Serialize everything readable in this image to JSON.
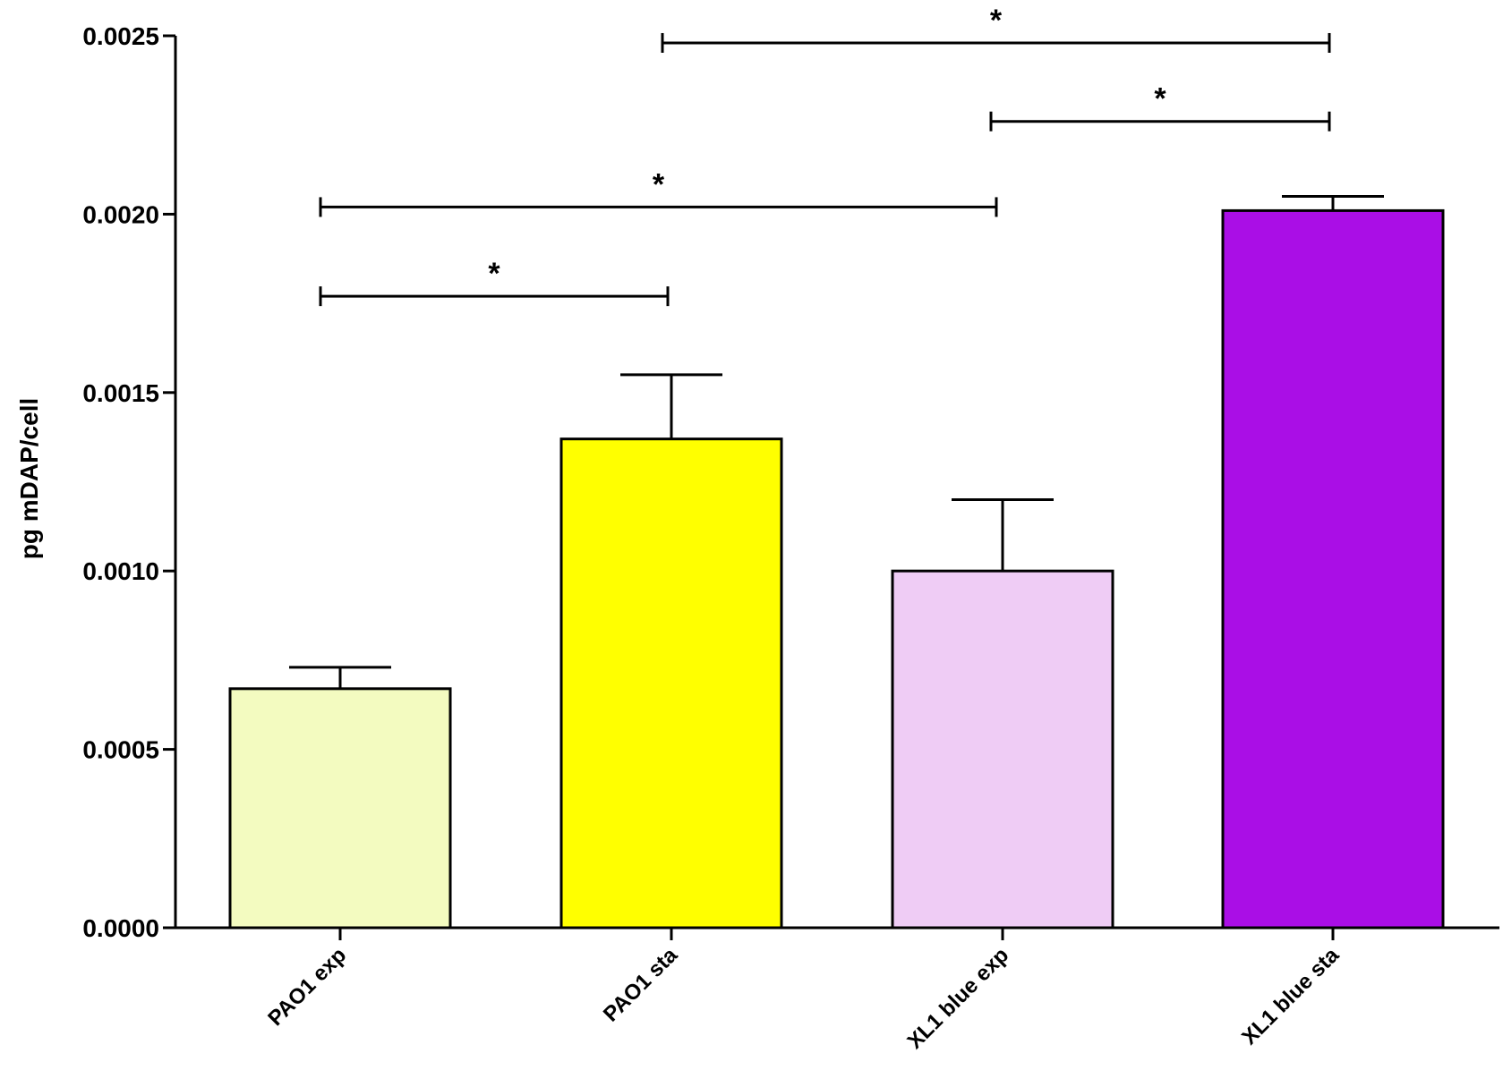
{
  "chart_data": {
    "type": "bar",
    "title": "",
    "xlabel": "",
    "ylabel": "pg mDAP/cell",
    "ylim": [
      0,
      0.0025
    ],
    "yticks": [
      "0.0000",
      "0.0005",
      "0.0010",
      "0.0015",
      "0.0020",
      "0.0025"
    ],
    "ytick_values": [
      0,
      0.0005,
      0.001,
      0.0015,
      0.002,
      0.0025
    ],
    "categories": [
      "PAO1 exp",
      "PAO1 sta",
      "XL1 blue exp",
      "XL1 blue sta"
    ],
    "values": [
      0.00067,
      0.00137,
      0.001,
      0.00201
    ],
    "errors": [
      6e-05,
      0.00018,
      0.0002,
      4e-05
    ],
    "colors": [
      "#f3fbc0",
      "#ffff00",
      "#efccf5",
      "#aa0ee6"
    ],
    "grid": false,
    "significance": [
      {
        "from": 0,
        "to": 1,
        "y": 0.00177,
        "label": "*"
      },
      {
        "from": 0,
        "to": 2,
        "y": 0.00202,
        "label": "*"
      },
      {
        "from": 2,
        "to": 3,
        "y": 0.00226,
        "label": "*"
      },
      {
        "from": 1,
        "to": 3,
        "y": 0.00248,
        "label": "*"
      }
    ]
  }
}
